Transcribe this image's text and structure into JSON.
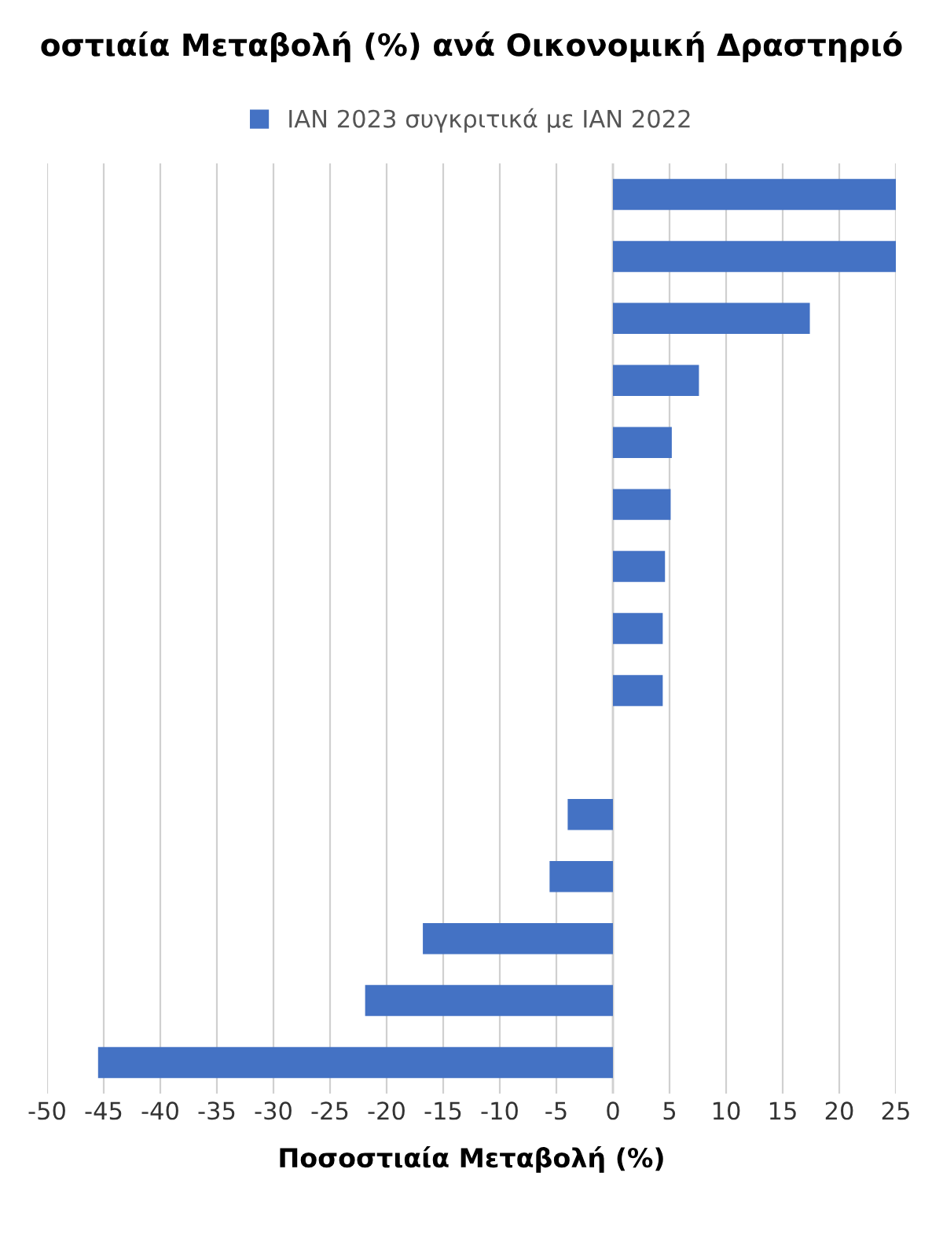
{
  "chart_data": {
    "type": "bar",
    "orientation": "horizontal",
    "title": "οστιαία Μεταβολή (%) ανά Οικονομική Δραστηριό",
    "xlabel": "Ποσοστιαία Μεταβολή (%)",
    "categories": [
      null,
      null,
      null,
      null,
      null,
      null,
      null,
      null,
      null,
      null,
      null,
      null,
      null,
      null,
      null
    ],
    "series": [
      {
        "name": "ΙΑΝ 2023 συγκριτικά με ΙΑΝ 2022",
        "color": "#4472c4",
        "values": [
          25,
          25,
          17.4,
          7.6,
          5.2,
          5.1,
          4.6,
          4.4,
          4.4,
          0,
          -4.0,
          -5.6,
          -16.8,
          -21.9,
          -45.5
        ]
      }
    ],
    "xlim": [
      -50,
      25
    ],
    "xticks": [
      -50,
      -45,
      -40,
      -35,
      -30,
      -25,
      -20,
      -15,
      -10,
      -5,
      0,
      5,
      10,
      15,
      20,
      25
    ],
    "grid": "x",
    "legend": "top"
  }
}
